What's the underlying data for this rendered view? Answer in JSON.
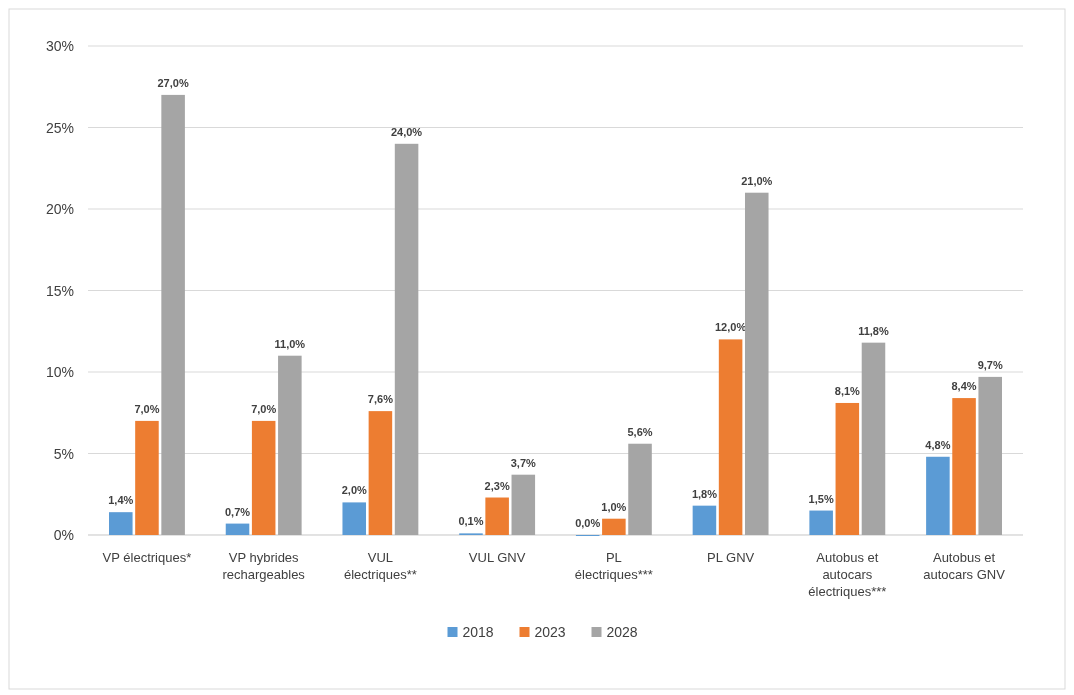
{
  "chart_data": {
    "type": "bar",
    "categories": [
      "VP électriques*",
      "VP hybrides rechargeables",
      "VUL électriques**",
      "VUL GNV",
      "PL électriques***",
      "PL GNV",
      "Autobus et autocars électriques***",
      "Autobus et autocars GNV"
    ],
    "series": [
      {
        "name": "2018",
        "color": "#5b9bd5",
        "values": [
          1.4,
          0.7,
          2.0,
          0.1,
          0.0,
          1.8,
          1.5,
          4.8
        ],
        "value_labels": [
          "1,4%",
          "0,7%",
          "2,0%",
          "0,1%",
          "0,0%",
          "1,8%",
          "1,5%",
          "4,8%"
        ]
      },
      {
        "name": "2023",
        "color": "#ed7d31",
        "values": [
          7.0,
          7.0,
          7.6,
          2.3,
          1.0,
          12.0,
          8.1,
          8.4
        ],
        "value_labels": [
          "7,0%",
          "7,0%",
          "7,6%",
          "2,3%",
          "1,0%",
          "12,0%",
          "8,1%",
          "8,4%"
        ]
      },
      {
        "name": "2028",
        "color": "#a5a5a5",
        "values": [
          27.0,
          11.0,
          24.0,
          3.7,
          5.6,
          21.0,
          11.8,
          9.7
        ],
        "value_labels": [
          "27,0%",
          "11,0%",
          "24,0%",
          "3,7%",
          "5,6%",
          "21,0%",
          "11,8%",
          "9,7%"
        ]
      }
    ],
    "ylim": [
      0,
      30
    ],
    "yticks": [
      {
        "value": 0,
        "label": "0%"
      },
      {
        "value": 5,
        "label": "5%"
      },
      {
        "value": 10,
        "label": "10%"
      },
      {
        "value": 15,
        "label": "15%"
      },
      {
        "value": 20,
        "label": "20%"
      },
      {
        "value": 25,
        "label": "25%"
      },
      {
        "value": 30,
        "label": "30%"
      }
    ],
    "grid": "y",
    "legend": "bottom"
  }
}
